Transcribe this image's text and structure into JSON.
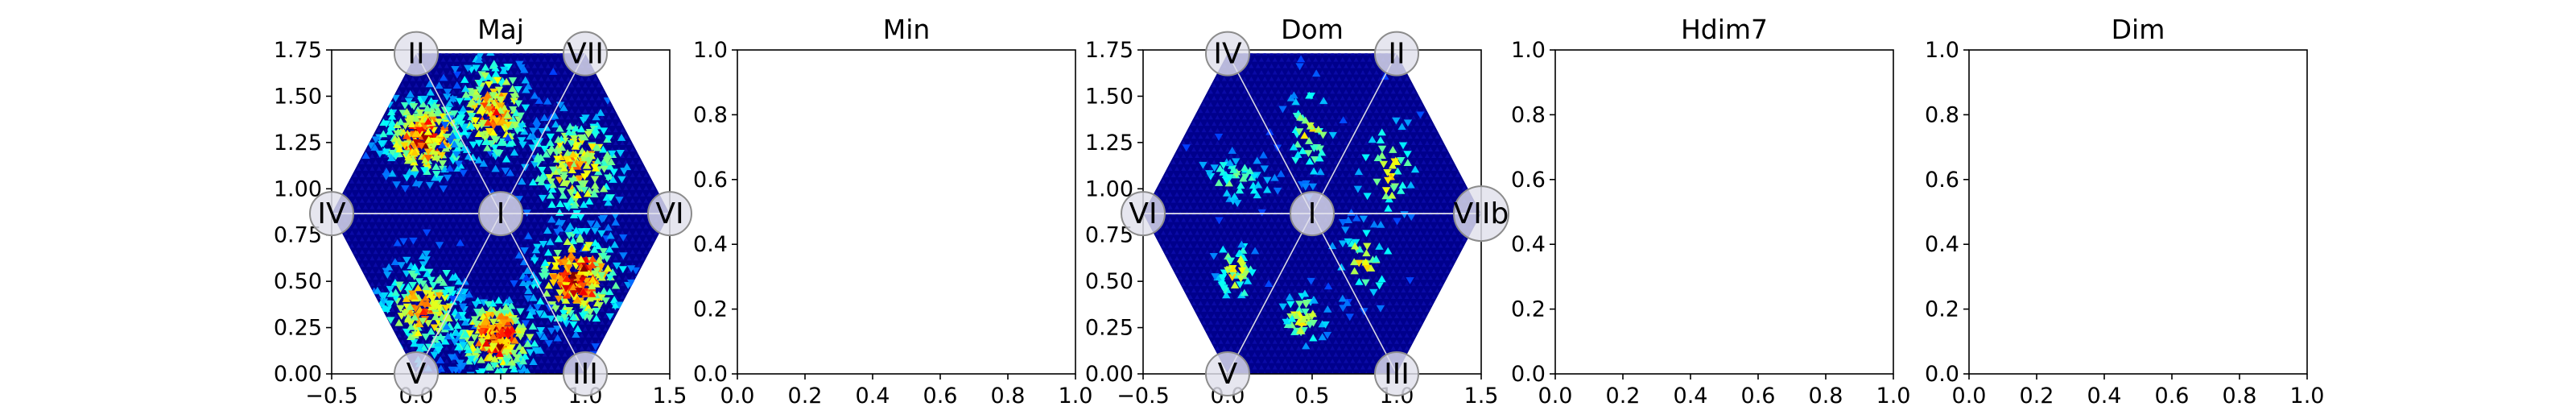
{
  "chart_data": [
    {
      "type": "heatmap",
      "title": "Maj",
      "xlim": [
        -0.5,
        1.5
      ],
      "ylim": [
        0,
        1.75
      ],
      "xticks": [
        "−0.5",
        "0.0",
        "0.5",
        "1.0",
        "1.5"
      ],
      "yticks": [
        "0.00",
        "0.25",
        "0.50",
        "0.75",
        "1.00",
        "1.25",
        "1.50",
        "1.75"
      ],
      "hexagon": true,
      "nodes": [
        {
          "label": "II",
          "x": 0.0,
          "y": 1.73
        },
        {
          "label": "VII",
          "x": 1.0,
          "y": 1.73
        },
        {
          "label": "IV",
          "x": -0.5,
          "y": 0.866
        },
        {
          "label": "I",
          "x": 0.5,
          "y": 0.866
        },
        {
          "label": "VI",
          "x": 1.5,
          "y": 0.866
        },
        {
          "label": "V",
          "x": 0.0,
          "y": 0.0
        },
        {
          "label": "III",
          "x": 1.0,
          "y": 0.0
        }
      ],
      "clusters": [
        {
          "x": 0.05,
          "y": 1.28,
          "sx": 0.14,
          "sy": 0.12,
          "n": 300,
          "peak": 0.9
        },
        {
          "x": 0.45,
          "y": 1.42,
          "sx": 0.12,
          "sy": 0.16,
          "n": 230,
          "peak": 0.75
        },
        {
          "x": 0.95,
          "y": 1.12,
          "sx": 0.16,
          "sy": 0.16,
          "n": 230,
          "peak": 0.7
        },
        {
          "x": 0.95,
          "y": 0.52,
          "sx": 0.14,
          "sy": 0.14,
          "n": 280,
          "peak": 0.95
        },
        {
          "x": 0.05,
          "y": 0.36,
          "sx": 0.14,
          "sy": 0.14,
          "n": 220,
          "peak": 0.7
        },
        {
          "x": 0.48,
          "y": 0.2,
          "sx": 0.13,
          "sy": 0.11,
          "n": 280,
          "peak": 0.95
        }
      ]
    },
    {
      "type": "empty",
      "title": "Min",
      "xlim": [
        0,
        1
      ],
      "ylim": [
        0,
        1
      ],
      "xticks": [
        "0.0",
        "0.2",
        "0.4",
        "0.6",
        "0.8",
        "1.0"
      ],
      "yticks": [
        "0.0",
        "0.2",
        "0.4",
        "0.6",
        "0.8",
        "1.0"
      ]
    },
    {
      "type": "heatmap",
      "title": "Dom",
      "xlim": [
        -0.5,
        1.5
      ],
      "ylim": [
        0,
        1.75
      ],
      "xticks": [
        "−0.5",
        "0.0",
        "0.5",
        "1.0",
        "1.5"
      ],
      "yticks": [
        "0.00",
        "0.25",
        "0.50",
        "0.75",
        "1.00",
        "1.25",
        "1.50",
        "1.75"
      ],
      "hexagon": true,
      "nodes": [
        {
          "label": "IV",
          "x": 0.0,
          "y": 1.73
        },
        {
          "label": "II",
          "x": 1.0,
          "y": 1.73
        },
        {
          "label": "VI",
          "x": -0.5,
          "y": 0.866
        },
        {
          "label": "I",
          "x": 0.5,
          "y": 0.866
        },
        {
          "label": "VIIb",
          "x": 1.5,
          "y": 0.866
        },
        {
          "label": "V",
          "x": 0.0,
          "y": 0.0
        },
        {
          "label": "III",
          "x": 1.0,
          "y": 0.0
        }
      ],
      "clusters": [
        {
          "x": 0.05,
          "y": 1.05,
          "sx": 0.14,
          "sy": 0.08,
          "n": 55,
          "peak": 0.38
        },
        {
          "x": 0.48,
          "y": 1.3,
          "sx": 0.08,
          "sy": 0.14,
          "n": 50,
          "peak": 0.55
        },
        {
          "x": 0.95,
          "y": 1.1,
          "sx": 0.1,
          "sy": 0.16,
          "n": 45,
          "peak": 0.55
        },
        {
          "x": 0.05,
          "y": 0.55,
          "sx": 0.07,
          "sy": 0.1,
          "n": 50,
          "peak": 0.55
        },
        {
          "x": 0.45,
          "y": 0.3,
          "sx": 0.08,
          "sy": 0.08,
          "n": 50,
          "peak": 0.55
        },
        {
          "x": 0.8,
          "y": 0.6,
          "sx": 0.1,
          "sy": 0.12,
          "n": 45,
          "peak": 0.55
        }
      ]
    },
    {
      "type": "empty",
      "title": "Hdim7",
      "xlim": [
        0,
        1
      ],
      "ylim": [
        0,
        1
      ],
      "xticks": [
        "0.0",
        "0.2",
        "0.4",
        "0.6",
        "0.8",
        "1.0"
      ],
      "yticks": [
        "0.0",
        "0.2",
        "0.4",
        "0.6",
        "0.8",
        "1.0"
      ]
    },
    {
      "type": "empty",
      "title": "Dim",
      "xlim": [
        0,
        1
      ],
      "ylim": [
        0,
        1
      ],
      "xticks": [
        "0.0",
        "0.2",
        "0.4",
        "0.6",
        "0.8",
        "1.0"
      ],
      "yticks": [
        "0.0",
        "0.2",
        "0.4",
        "0.6",
        "0.8",
        "1.0"
      ]
    }
  ]
}
